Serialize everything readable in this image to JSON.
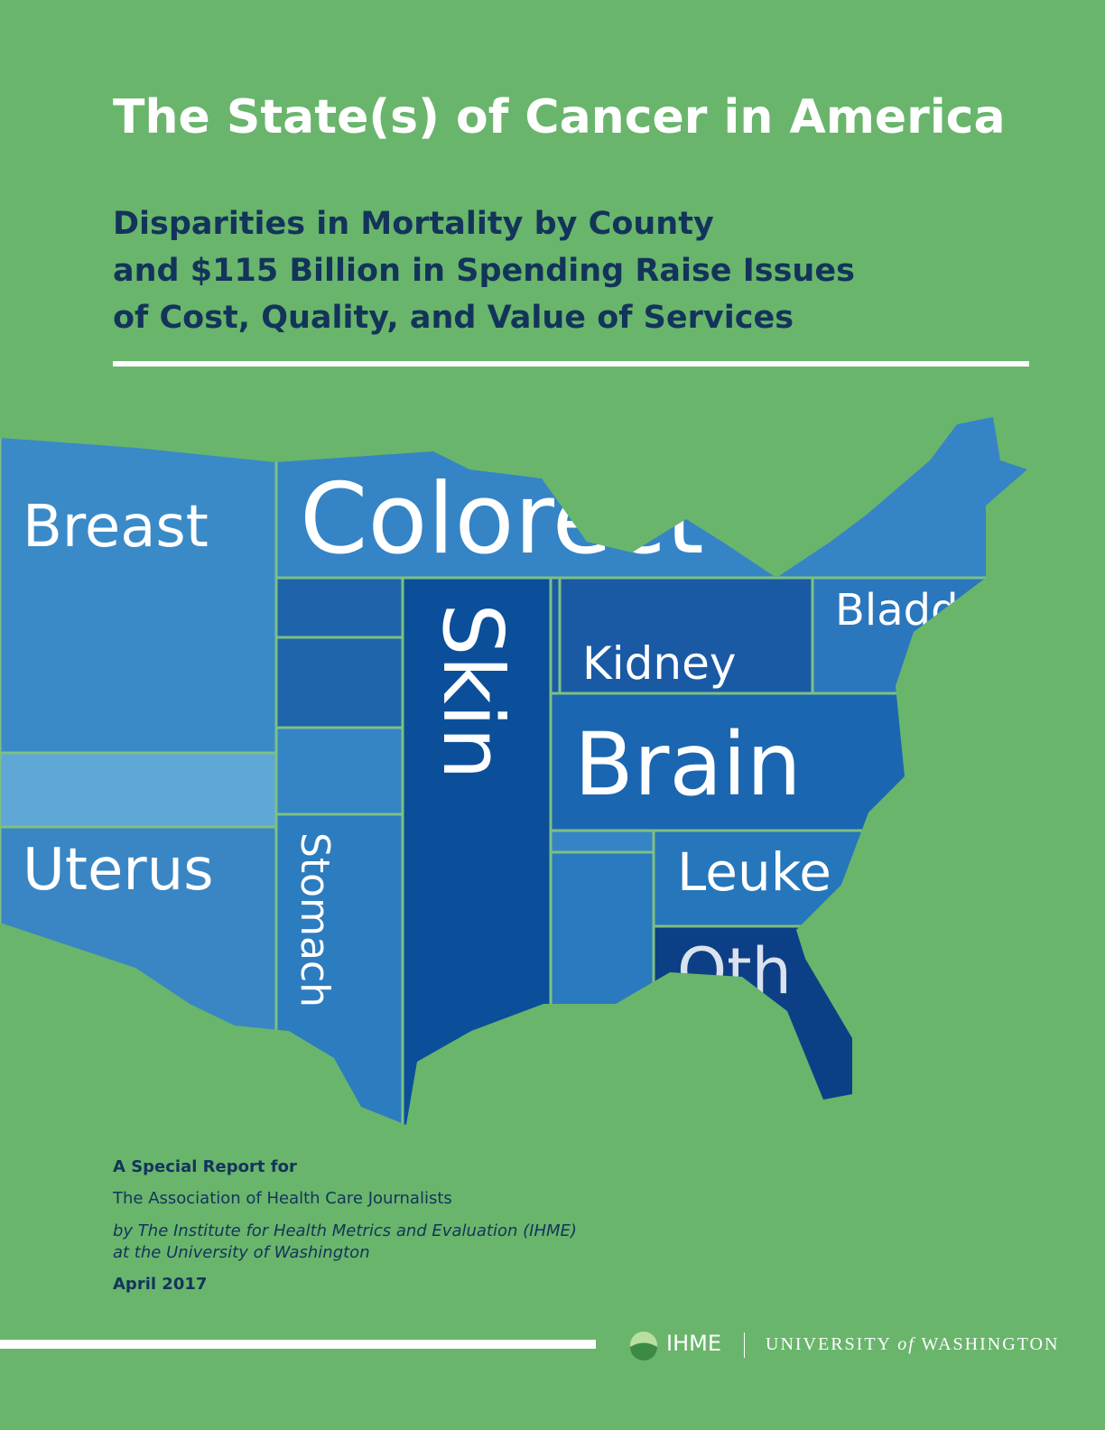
{
  "header": {
    "title": "The State(s) of Cancer in America",
    "subtitle_lines": [
      "Disparities in Mortality by County",
      "and $115 Billion in Spending Raise Issues",
      "of Cost, Quality, and Value of Services"
    ]
  },
  "map": {
    "labels": {
      "breast": "Breast",
      "colorectal": "Colorect",
      "skin": "Skin",
      "kidney": "Kidney",
      "bladder": "Bladd",
      "brain": "Brain",
      "uterus": "Uterus",
      "stomach": "Stomach",
      "leukemia": "Leuke",
      "other": "Oth"
    }
  },
  "footer": {
    "lines": [
      "A Special Report for",
      "The Association of Health Care Journalists"
    ],
    "byline": [
      "by The Institute for Health Metrics and Evaluation (IHME)",
      "at the University of Washington"
    ],
    "date": "April 2017"
  },
  "logos": {
    "ihme": "IHME",
    "university": [
      "UNIVERSITY",
      "of",
      "WASHINGTON"
    ]
  }
}
